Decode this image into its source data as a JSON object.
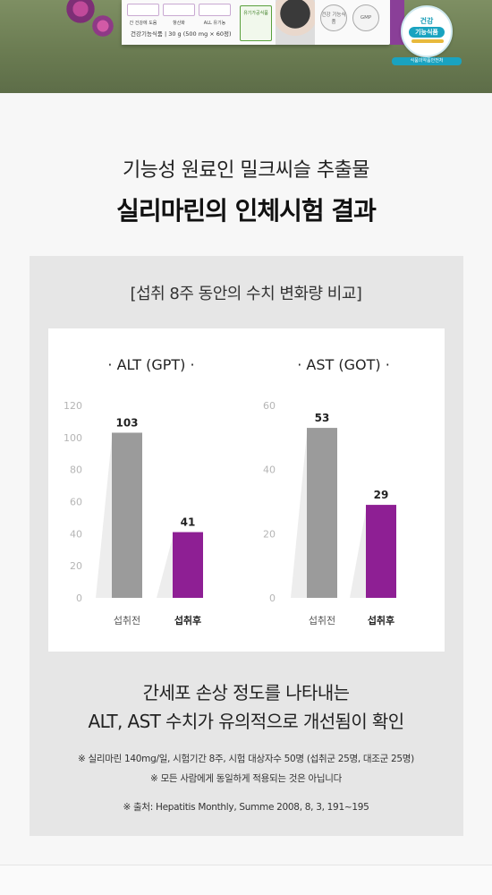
{
  "banner": {
    "features": [
      "간 건강에 도움",
      "항산화",
      "ALL 유기농"
    ],
    "organic": "유기가공식품",
    "box_weight": "건강기능식품 | 30 g (500 mg × 60정)",
    "seal_left": "건강 기능식품",
    "seal_right": "GMP",
    "badge_top": "건강",
    "badge_mid": "기능식품",
    "badge_caption": "식품의약품안전처",
    "colors": {
      "green": "#6b7c52",
      "purple": "#8a3f98",
      "badge_blue": "#1aa3c0"
    }
  },
  "heading": {
    "subtitle": "기능성 원료인 밀크씨슬 추출물",
    "title": "실리마린의 인체시험 결과"
  },
  "panel": {
    "caption": "[섭취 8주 동안의 수치 변화량 비교]",
    "result_line1": "간세포 손상 정도를 나타내는",
    "result_line2": "ALT, AST 수치가 유의적으로 개선됨이 확인",
    "note1": "※ 실리마린 140mg/일, 시험기간 8주, 시험 대상자수 50명 (섭취군 25명, 대조군 25명)",
    "note2": "※ 모든 사람에게 동일하게 적용되는 것은 아닙니다",
    "note3": "※ 출처: Hepatitis Monthly, Summe 2008, 8, 3, 191~195"
  },
  "chart_data": [
    {
      "type": "bar",
      "title": "· ALT (GPT) ·",
      "categories": [
        "섭취전",
        "섭취후"
      ],
      "values": [
        103,
        41
      ],
      "data_labels": [
        "103",
        "41"
      ],
      "yticks": [
        0,
        20,
        40,
        60,
        80,
        100,
        120
      ],
      "ylim": [
        0,
        120
      ],
      "colors": [
        "#9b9b9b",
        "#8e1f94"
      ]
    },
    {
      "type": "bar",
      "title": "· AST (GOT) ·",
      "categories": [
        "섭취전",
        "섭취후"
      ],
      "values": [
        53,
        29
      ],
      "data_labels": [
        "53",
        "29"
      ],
      "yticks": [
        0,
        20,
        40,
        60
      ],
      "ylim": [
        0,
        60
      ],
      "colors": [
        "#9b9b9b",
        "#8e1f94"
      ]
    }
  ]
}
